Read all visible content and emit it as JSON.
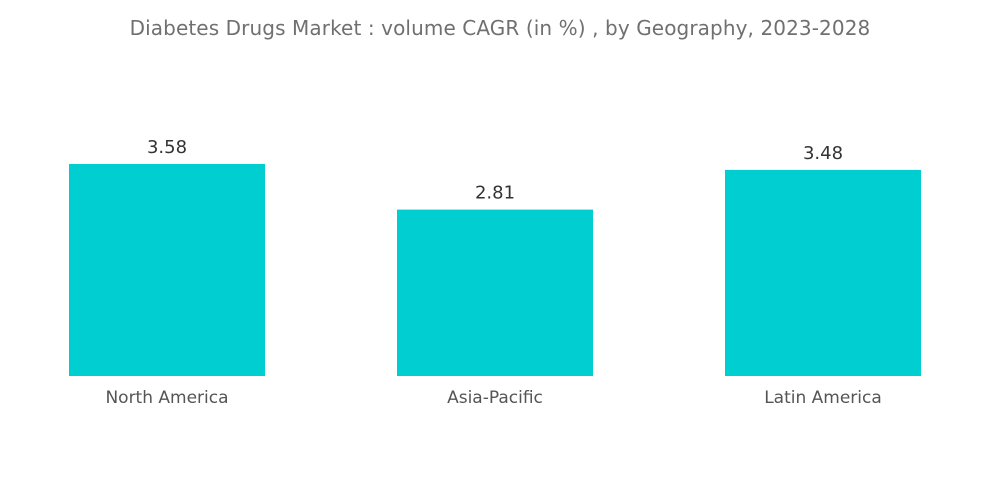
{
  "chart_data": {
    "type": "bar",
    "title": "Diabetes Drugs Market : volume CAGR (in %) , by Geography,  2023-2028",
    "categories": [
      "North America",
      "Asia-Pacific",
      "Latin America"
    ],
    "values": [
      3.58,
      2.81,
      3.48
    ],
    "data_labels": [
      "3.58",
      "2.81",
      "3.48"
    ],
    "xlabel": "",
    "ylabel": "",
    "ylim": [
      0,
      3.58
    ],
    "grid": false,
    "legend": "none",
    "bar_color": "#00CED1"
  }
}
